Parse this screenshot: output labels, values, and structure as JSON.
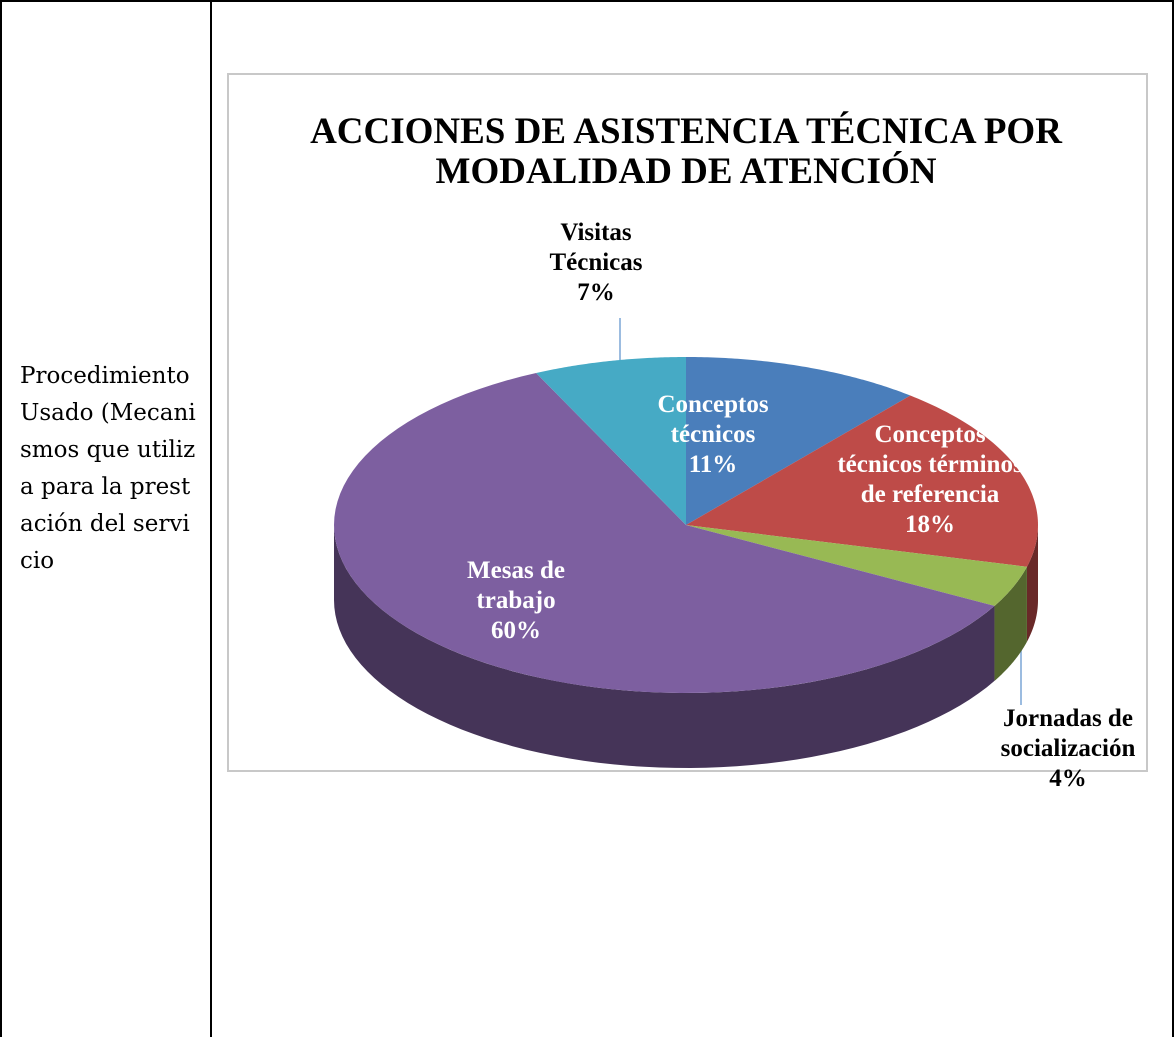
{
  "table": {
    "rows": [
      [
        "Procedimiento Usado (Mecanismos que utiliza para la prestación del servicio"
      ]
    ]
  },
  "chart_data": {
    "type": "pie3d",
    "title": "ACCIONES DE ASISTENCIA TÉCNICA POR MODALIDAD DE ATENCIÓN",
    "categories": [
      "Conceptos técnicos",
      "Conceptos técnicos términos de referencia",
      "Jornadas de socialización",
      "Mesas de trabajo",
      "Visitas Técnicas"
    ],
    "values": [
      11,
      18,
      4,
      60,
      7
    ],
    "value_labels": [
      "11%",
      "18%",
      "4%",
      "60%",
      "7%"
    ],
    "colors": [
      "#4a7ebb",
      "#be4b48",
      "#98b954",
      "#7d5fa0",
      "#46aac5"
    ]
  }
}
